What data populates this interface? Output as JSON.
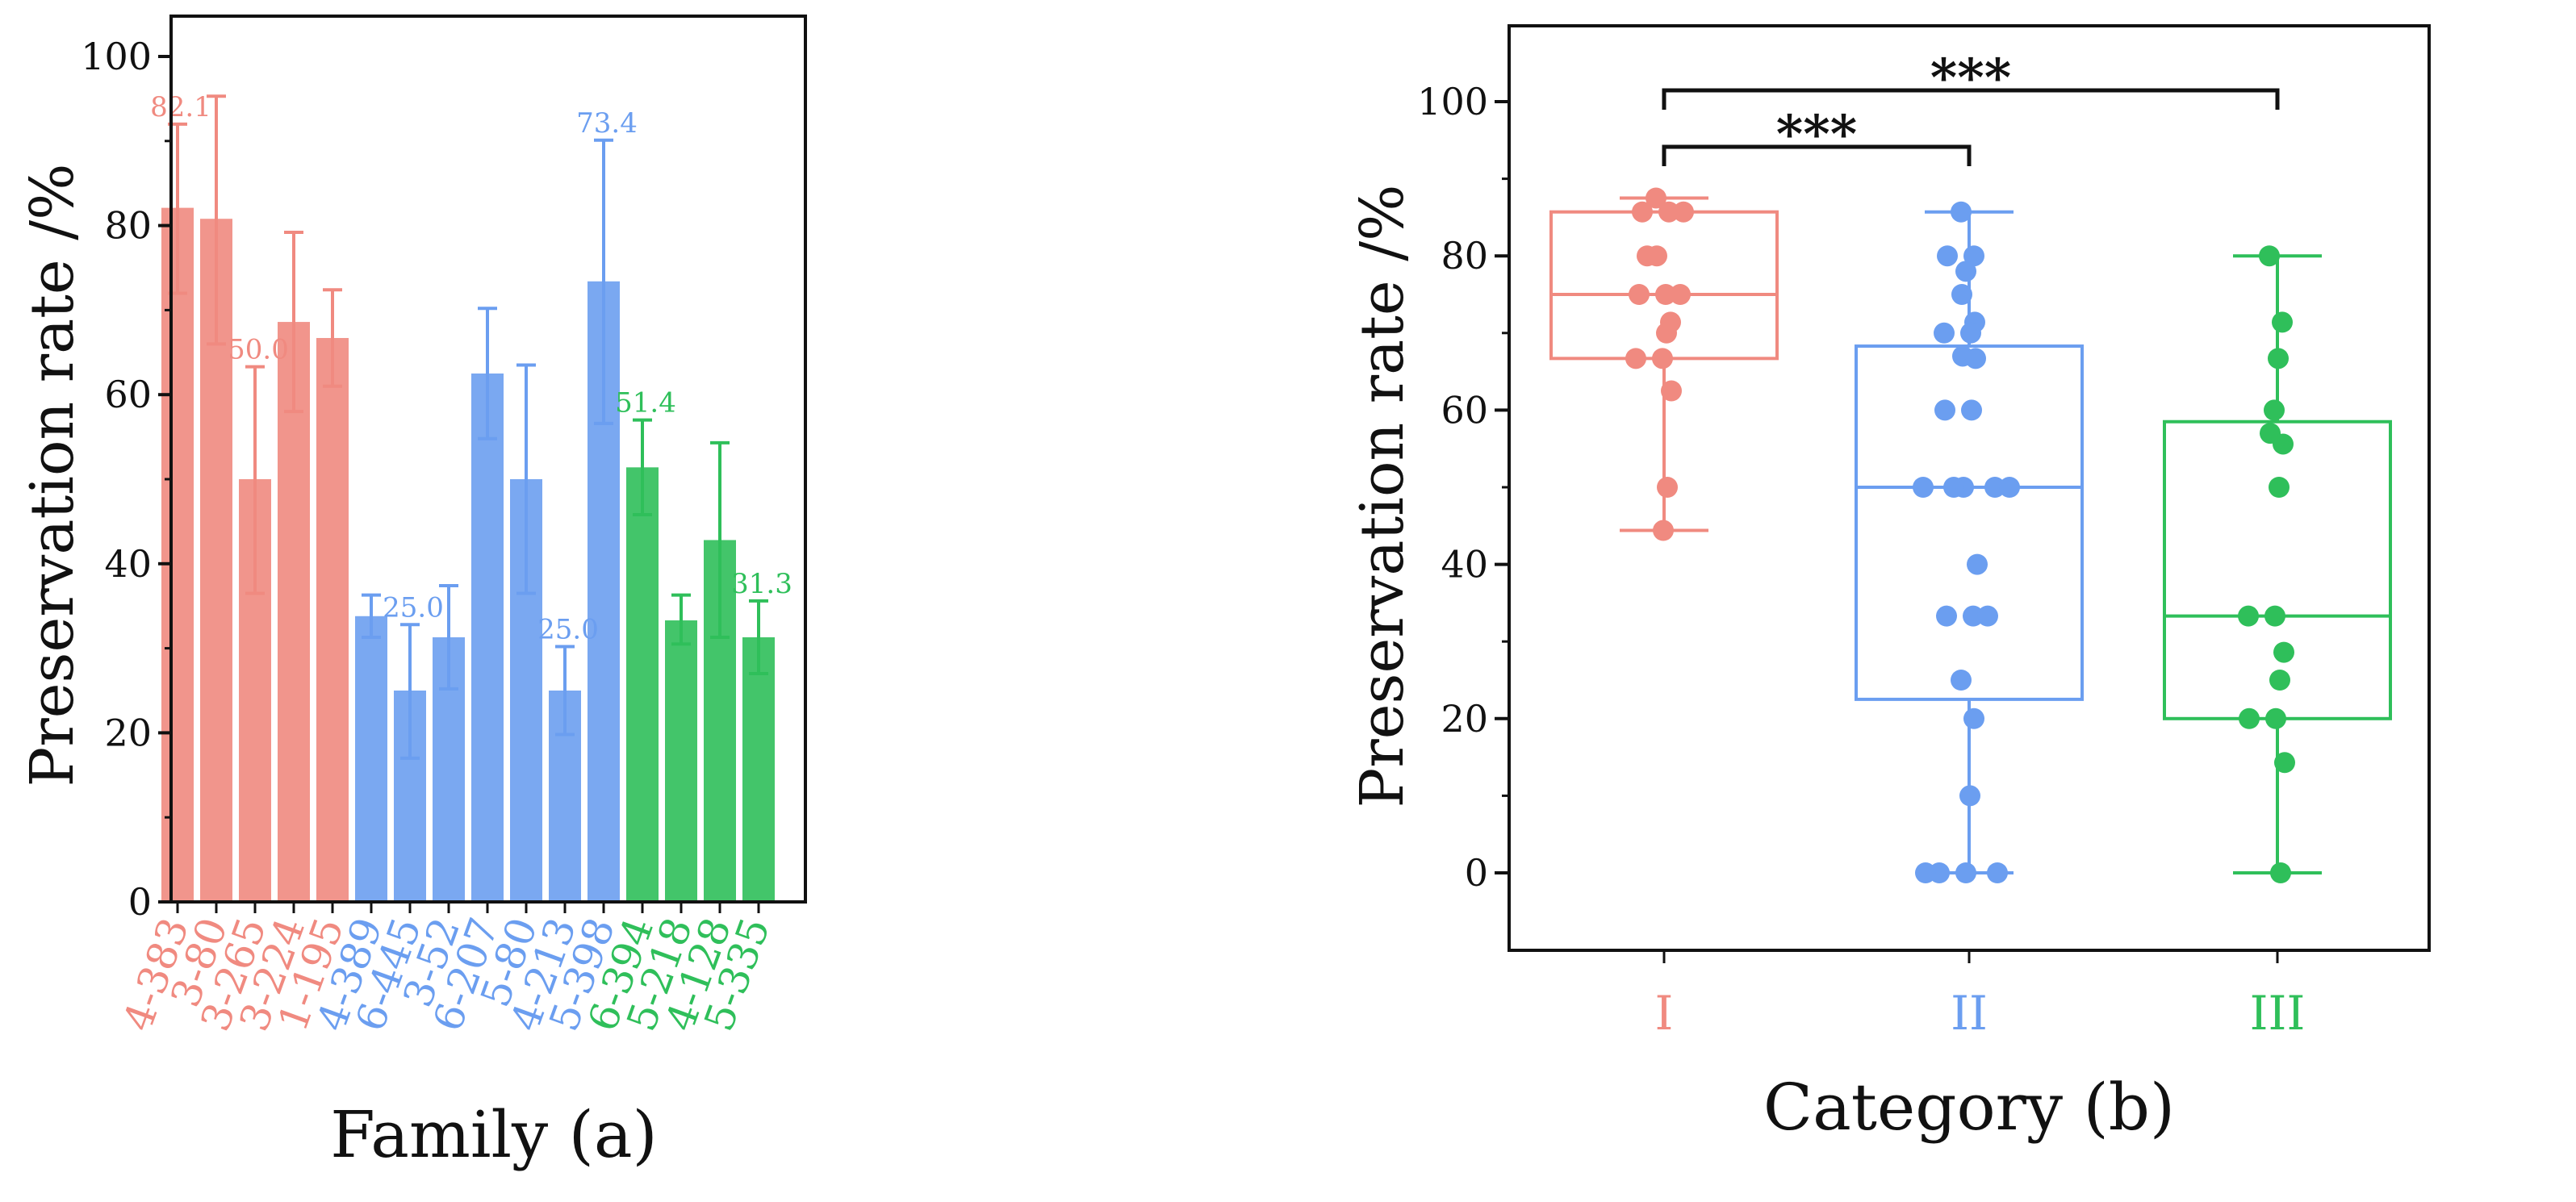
{
  "chart_data": [
    {
      "type": "bar",
      "panel": "a",
      "xlabel": "Family (a)",
      "ylabel": "Preservation rate /%",
      "ylim": [
        0,
        100
      ],
      "yticks": [
        0,
        20,
        40,
        60,
        80,
        100
      ],
      "groups": [
        {
          "name": "I",
          "color": "#f08a80"
        },
        {
          "name": "II",
          "color": "#6b9ef0"
        },
        {
          "name": "III",
          "color": "#2fbf5a"
        }
      ],
      "bars": [
        {
          "label": "4-383",
          "group": 0,
          "value": 82.1,
          "err": [
            72,
            92
          ],
          "annotation": "82.1"
        },
        {
          "label": "3-80",
          "group": 0,
          "value": 80.8,
          "err": [
            66,
            95.3
          ],
          "annotation": ""
        },
        {
          "label": "3-265",
          "group": 0,
          "value": 50.0,
          "err": [
            36.5,
            63.3
          ],
          "annotation": "50.0"
        },
        {
          "label": "3-224",
          "group": 0,
          "value": 68.6,
          "err": [
            58,
            79.2
          ],
          "annotation": ""
        },
        {
          "label": "1-195",
          "group": 0,
          "value": 66.7,
          "err": [
            61,
            72.4
          ],
          "annotation": ""
        },
        {
          "label": "4-389",
          "group": 1,
          "value": 33.8,
          "err": [
            31.3,
            36.3
          ],
          "annotation": ""
        },
        {
          "label": "6-445",
          "group": 1,
          "value": 25.0,
          "err": [
            17,
            32.8
          ],
          "annotation": "25.0"
        },
        {
          "label": "3-52",
          "group": 1,
          "value": 31.3,
          "err": [
            25.2,
            37.4
          ],
          "annotation": ""
        },
        {
          "label": "6-207",
          "group": 1,
          "value": 62.5,
          "err": [
            54.8,
            70.2
          ],
          "annotation": ""
        },
        {
          "label": "5-80",
          "group": 1,
          "value": 50.0,
          "err": [
            36.5,
            63.5
          ],
          "annotation": ""
        },
        {
          "label": "4-213",
          "group": 1,
          "value": 25.0,
          "err": [
            19.8,
            30.2
          ],
          "annotation": "25.0"
        },
        {
          "label": "5-398",
          "group": 1,
          "value": 73.4,
          "err": [
            56.6,
            90.1
          ],
          "annotation": "73.4"
        },
        {
          "label": "6-394",
          "group": 2,
          "value": 51.4,
          "err": [
            45.8,
            57
          ],
          "annotation": "51.4"
        },
        {
          "label": "5-218",
          "group": 2,
          "value": 33.3,
          "err": [
            30.5,
            36.3
          ],
          "annotation": ""
        },
        {
          "label": "4-128",
          "group": 2,
          "value": 42.8,
          "err": [
            31.3,
            54.3
          ],
          "annotation": ""
        },
        {
          "label": "5-335",
          "group": 2,
          "value": 31.3,
          "err": [
            27,
            35.6
          ],
          "annotation": "31.3"
        }
      ]
    },
    {
      "type": "box",
      "panel": "b",
      "xlabel": "Category (b)",
      "ylabel": "Preservation rate /%",
      "ylim": [
        -10,
        110
      ],
      "yticks": [
        0,
        20,
        40,
        60,
        80,
        100
      ],
      "categories": [
        {
          "label": "I",
          "color": "#f08a80",
          "q1": 66.7,
          "median": 75.0,
          "q3": 85.7,
          "whisker_low": 44.4,
          "whisker_high": 87.5,
          "points": [
            87.5,
            85.7,
            85.7,
            85.7,
            80,
            80,
            75,
            75,
            75,
            71.4,
            70,
            66.7,
            66.7,
            62.5,
            50,
            44.4
          ]
        },
        {
          "label": "II",
          "color": "#6b9ef0",
          "q1": 22.5,
          "median": 50.0,
          "q3": 68.3,
          "whisker_low": 0,
          "whisker_high": 85.7,
          "points": [
            85.7,
            80,
            80,
            78,
            75,
            71.4,
            70,
            70,
            67,
            66.7,
            60,
            60,
            50,
            50,
            50,
            50,
            50,
            40,
            33.3,
            33.3,
            33.3,
            25,
            20,
            10,
            0,
            0,
            0,
            0
          ]
        },
        {
          "label": "III",
          "color": "#2fbf5a",
          "q1": 20.0,
          "median": 33.3,
          "q3": 58.5,
          "whisker_low": 0,
          "whisker_high": 80.0,
          "points": [
            80,
            71.4,
            66.7,
            60,
            57,
            55.6,
            50,
            33.3,
            33.3,
            28.6,
            25,
            20,
            20,
            14.3,
            0
          ]
        }
      ],
      "significance": [
        {
          "from": "I",
          "to": "II",
          "label": "***"
        },
        {
          "from": "I",
          "to": "III",
          "label": "***"
        }
      ]
    }
  ]
}
